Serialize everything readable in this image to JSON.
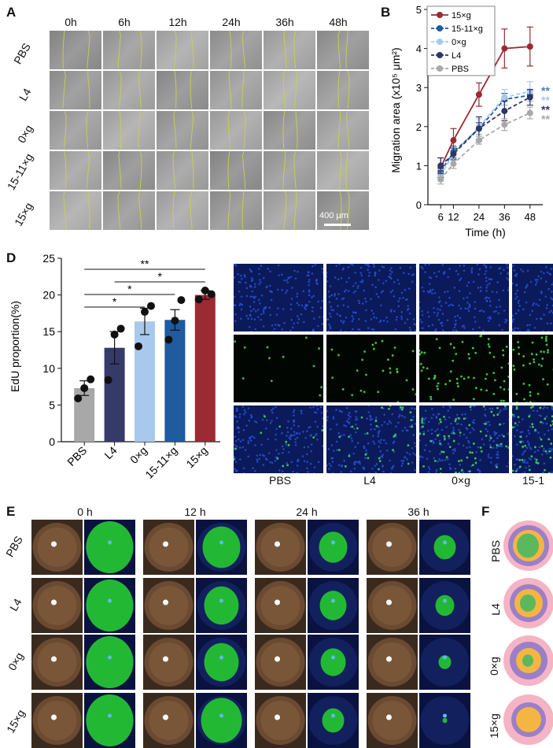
{
  "panels": {
    "A": "A",
    "B": "B",
    "D": "D",
    "E": "E",
    "F": "F"
  },
  "panelA": {
    "time_labels": [
      "0h",
      "6h",
      "12h",
      "24h",
      "36h",
      "48h"
    ],
    "row_labels": [
      "PBS",
      "L4",
      "0×g",
      "15-11×g",
      "15×g"
    ],
    "scale_bar": "400 μm"
  },
  "panelB": {
    "chart_data": {
      "type": "line",
      "xlabel": "Time (h)",
      "ylabel": "Migration area (x10⁵ μm²)",
      "x": [
        6,
        12,
        24,
        36,
        48
      ],
      "xticks": [
        "6",
        "12",
        "24",
        "36",
        "48"
      ],
      "yticks": [
        "0",
        "1",
        "2",
        "3",
        "4",
        "5"
      ],
      "ylim": [
        0,
        5
      ],
      "legend_position": "top-left",
      "series": [
        {
          "name": "15×g",
          "color": "#9b2a33",
          "dashed": false,
          "values": [
            0.95,
            1.65,
            2.82,
            4.0,
            4.05
          ],
          "err": [
            0.25,
            0.3,
            0.3,
            0.5,
            0.5
          ]
        },
        {
          "name": "15-11×g",
          "color": "#1f5b9e",
          "dashed": true,
          "values": [
            0.85,
            1.35,
            1.95,
            2.7,
            2.8
          ],
          "err": [
            0.15,
            0.15,
            0.15,
            0.15,
            0.15
          ]
        },
        {
          "name": "0×g",
          "color": "#a9c9ec",
          "dashed": true,
          "values": [
            0.75,
            1.3,
            2.0,
            2.75,
            2.9
          ],
          "err": [
            0.15,
            0.15,
            0.2,
            0.2,
            0.25
          ]
        },
        {
          "name": "L4",
          "color": "#2f3567",
          "dashed": true,
          "values": [
            1.0,
            1.3,
            1.95,
            2.4,
            2.75
          ],
          "err": [
            0.2,
            0.15,
            0.3,
            0.25,
            0.2
          ]
        },
        {
          "name": "PBS",
          "color": "#a8a8a8",
          "dashed": true,
          "values": [
            0.65,
            1.05,
            1.65,
            2.05,
            2.35
          ],
          "err": [
            0.12,
            0.12,
            0.1,
            0.15,
            0.15
          ]
        }
      ],
      "annotations": [
        {
          "text": "**",
          "color": "#4a7fc0"
        },
        {
          "text": "**",
          "color": "#a9c9ec"
        },
        {
          "text": "**",
          "color": "#2f3567"
        },
        {
          "text": "**",
          "color": "#a8a8a8"
        }
      ]
    }
  },
  "panelD": {
    "chart_data": {
      "type": "bar",
      "ylabel": "EdU proportion(%)",
      "categories": [
        "PBS",
        "L4",
        "0×g",
        "15-11×g",
        "15×g"
      ],
      "values": [
        7.3,
        12.8,
        16.4,
        16.6,
        20.0
      ],
      "errors": [
        1.0,
        2.2,
        1.8,
        1.4,
        0.6
      ],
      "colors": [
        "#a8a8a8",
        "#363a68",
        "#a9c9ec",
        "#1f5b9e",
        "#9b2a33"
      ],
      "points": [
        [
          5.9,
          7.3,
          8.5
        ],
        [
          8.4,
          14.6,
          15.4
        ],
        [
          13.0,
          17.7,
          18.5
        ],
        [
          13.9,
          16.5,
          19.3
        ],
        [
          19.4,
          20.6,
          20.1
        ]
      ],
      "yticks": [
        "0",
        "5",
        "10",
        "15",
        "20",
        "25"
      ],
      "ylim": [
        0,
        25
      ],
      "significance": [
        {
          "from": "PBS",
          "to": "15×g",
          "label": "**"
        },
        {
          "from": "L4",
          "to": "15×g",
          "label": "*"
        },
        {
          "from": "PBS",
          "to": "15-11×g",
          "label": "*"
        },
        {
          "from": "PBS",
          "to": "0×g",
          "label": "*"
        }
      ]
    },
    "image_labels": [
      "PBS",
      "L4",
      "0×g",
      "15-1"
    ]
  },
  "panelE": {
    "time_labels": [
      "0 h",
      "12 h",
      "24 h",
      "36 h"
    ],
    "row_labels": [
      "PBS",
      "L4",
      "0×g",
      "15×g"
    ]
  },
  "panelF": {
    "row_labels": [
      "PBS",
      "L4",
      "0×g",
      "15×g"
    ]
  }
}
